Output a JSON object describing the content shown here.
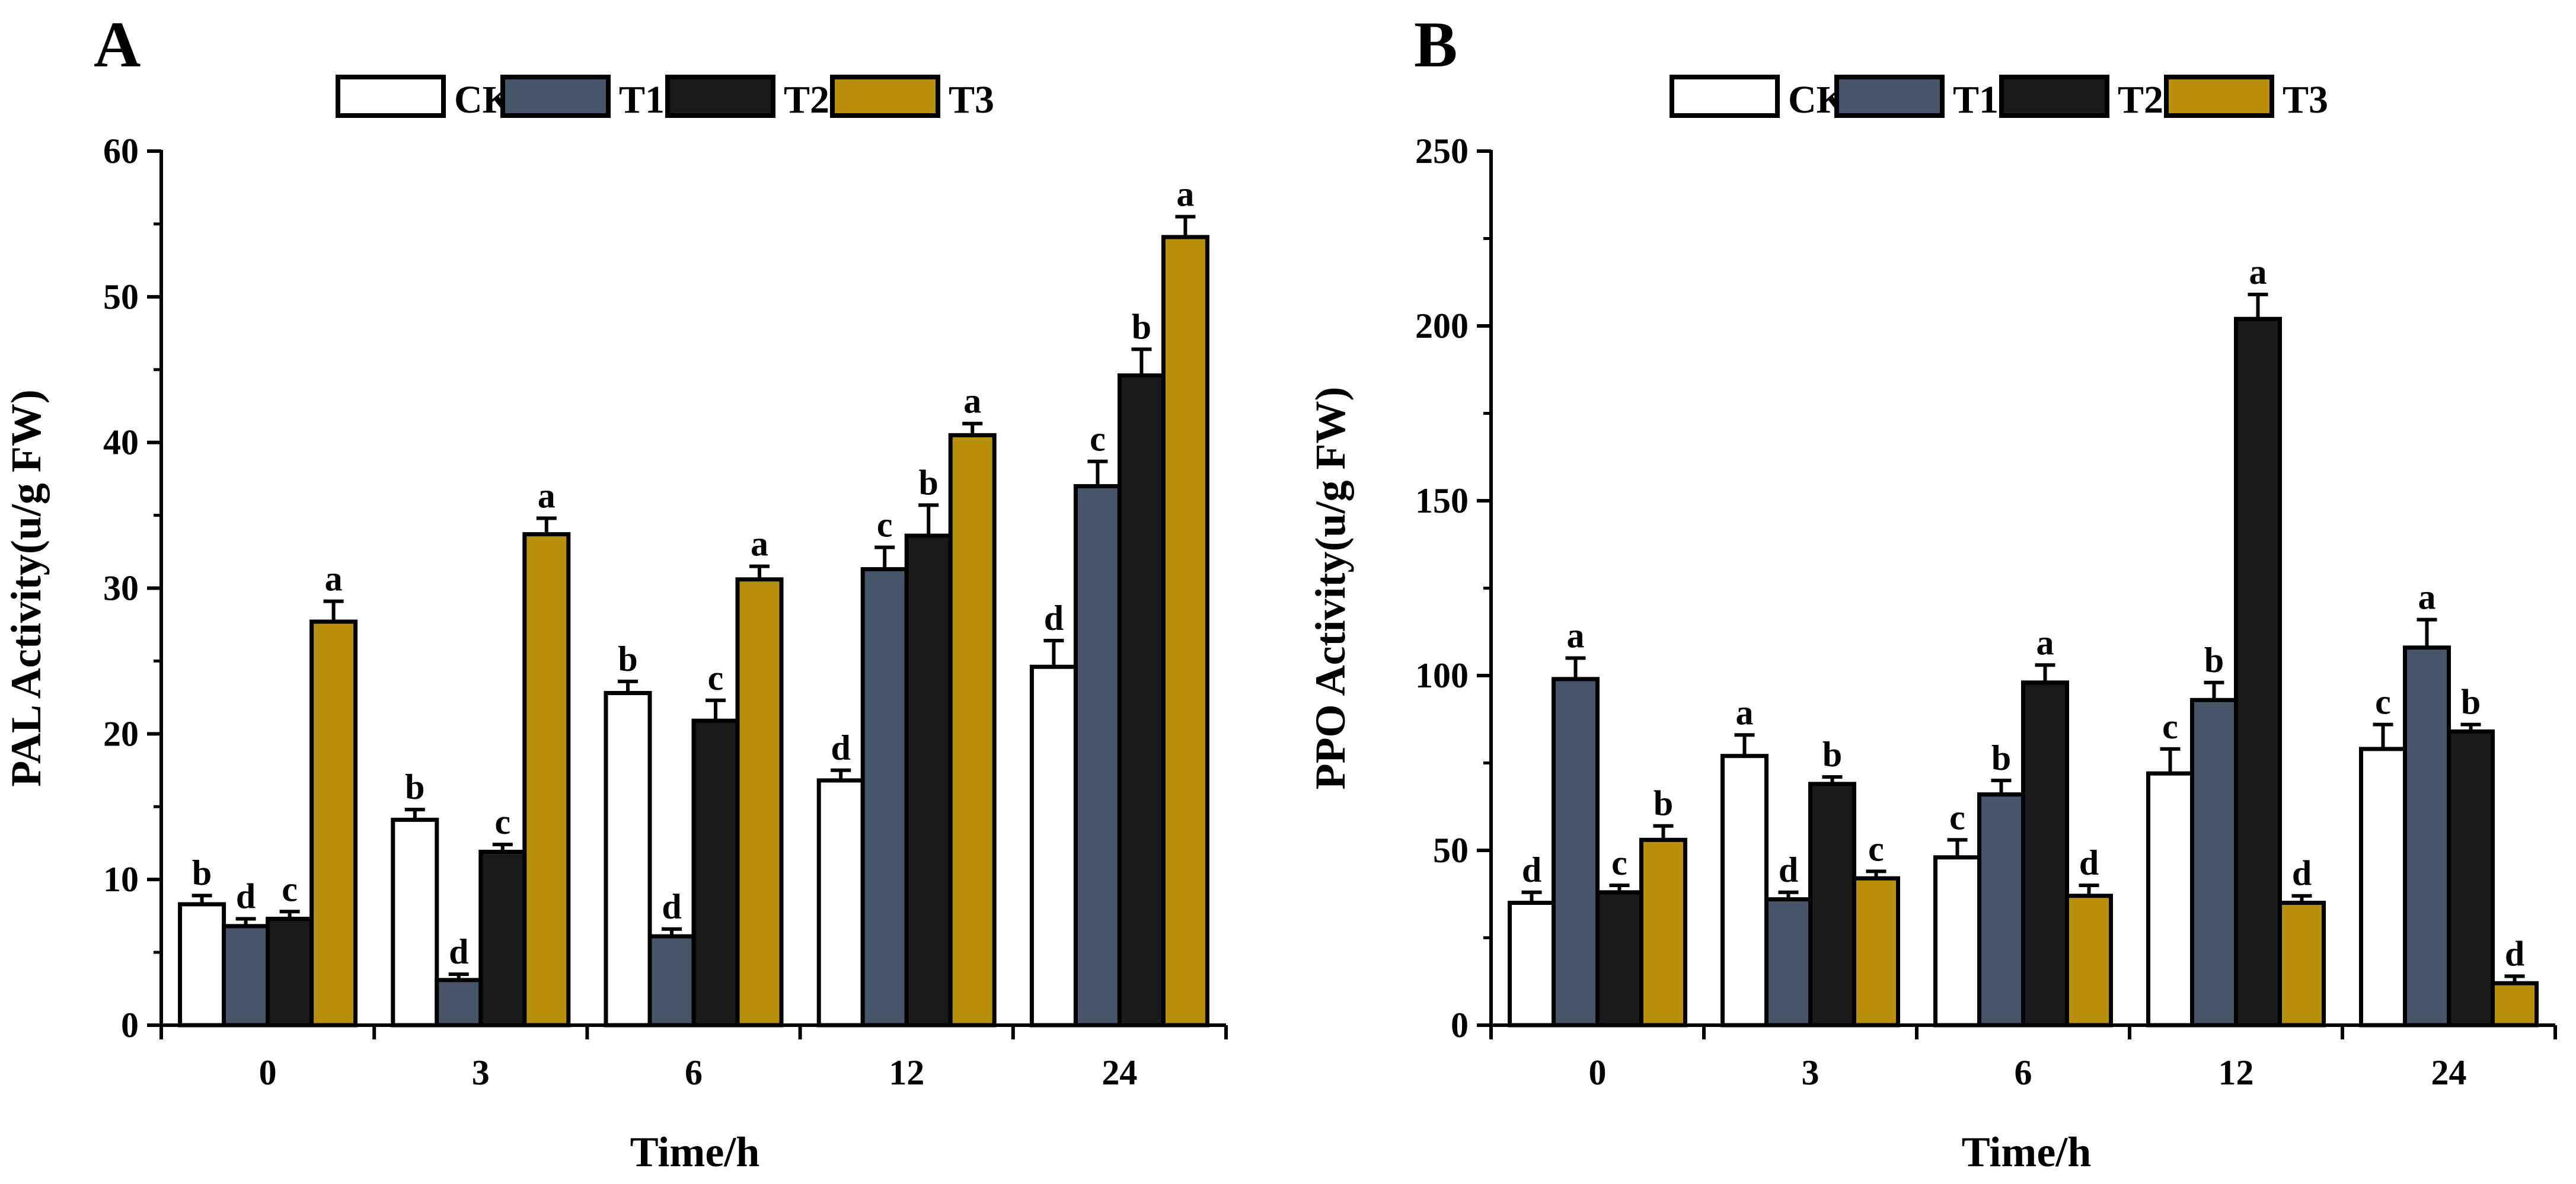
{
  "colors": {
    "CK": "#ffffff",
    "T1": "#475569",
    "T2": "#1a1a1a",
    "T3": "#b8900b",
    "outline": "#000000"
  },
  "chart_data": [
    {
      "type": "bar",
      "panel_label": "A",
      "title": "",
      "xlabel": "Time/h",
      "ylabel": "PAL Activity(u/g FW)",
      "categories": [
        "0",
        "3",
        "6",
        "12",
        "24"
      ],
      "ylim": [
        0,
        60
      ],
      "yticks": [
        0,
        10,
        20,
        30,
        40,
        50,
        60
      ],
      "legend_position": "top-center",
      "series": [
        {
          "name": "CK",
          "values": [
            8.3,
            14.1,
            22.8,
            16.8,
            24.6
          ],
          "errors": [
            0.6,
            0.7,
            0.8,
            0.7,
            1.8
          ],
          "labels": [
            "b",
            "b",
            "b",
            "d",
            "d"
          ]
        },
        {
          "name": "T1",
          "values": [
            6.8,
            3.1,
            6.1,
            31.3,
            37.0
          ],
          "errors": [
            0.5,
            0.4,
            0.5,
            1.5,
            1.7
          ],
          "labels": [
            "d",
            "d",
            "d",
            "c",
            "c"
          ]
        },
        {
          "name": "T2",
          "values": [
            7.3,
            11.9,
            20.9,
            33.6,
            44.6
          ],
          "errors": [
            0.5,
            0.5,
            1.4,
            2.1,
            1.8
          ],
          "labels": [
            "c",
            "c",
            "c",
            "b",
            "b"
          ]
        },
        {
          "name": "T3",
          "values": [
            27.7,
            33.7,
            30.6,
            40.5,
            54.1
          ],
          "errors": [
            1.4,
            1.1,
            0.9,
            0.8,
            1.4
          ],
          "labels": [
            "a",
            "a",
            "a",
            "a",
            "a"
          ]
        }
      ]
    },
    {
      "type": "bar",
      "panel_label": "B",
      "title": "",
      "xlabel": "Time/h",
      "ylabel": "PPO Activity(u/g FW)",
      "categories": [
        "0",
        "3",
        "6",
        "12",
        "24"
      ],
      "ylim": [
        0,
        250
      ],
      "yticks": [
        0,
        50,
        100,
        150,
        200,
        250
      ],
      "legend_position": "top-center",
      "series": [
        {
          "name": "CK",
          "values": [
            35,
            77,
            48,
            72,
            79
          ],
          "errors": [
            3,
            6,
            5,
            7,
            7
          ],
          "labels": [
            "d",
            "a",
            "c",
            "c",
            "c"
          ]
        },
        {
          "name": "T1",
          "values": [
            99,
            36,
            66,
            93,
            108
          ],
          "errors": [
            6,
            2,
            4,
            5,
            8
          ],
          "labels": [
            "a",
            "d",
            "b",
            "b",
            "a"
          ]
        },
        {
          "name": "T2",
          "values": [
            38,
            69,
            98,
            202,
            84
          ],
          "errors": [
            2,
            2,
            5,
            7,
            2
          ],
          "labels": [
            "c",
            "b",
            "a",
            "a",
            "b"
          ]
        },
        {
          "name": "T3",
          "values": [
            53,
            42,
            37,
            35,
            12
          ],
          "errors": [
            4,
            2,
            3,
            2,
            2
          ],
          "labels": [
            "b",
            "c",
            "d",
            "d",
            "d"
          ]
        }
      ]
    }
  ]
}
